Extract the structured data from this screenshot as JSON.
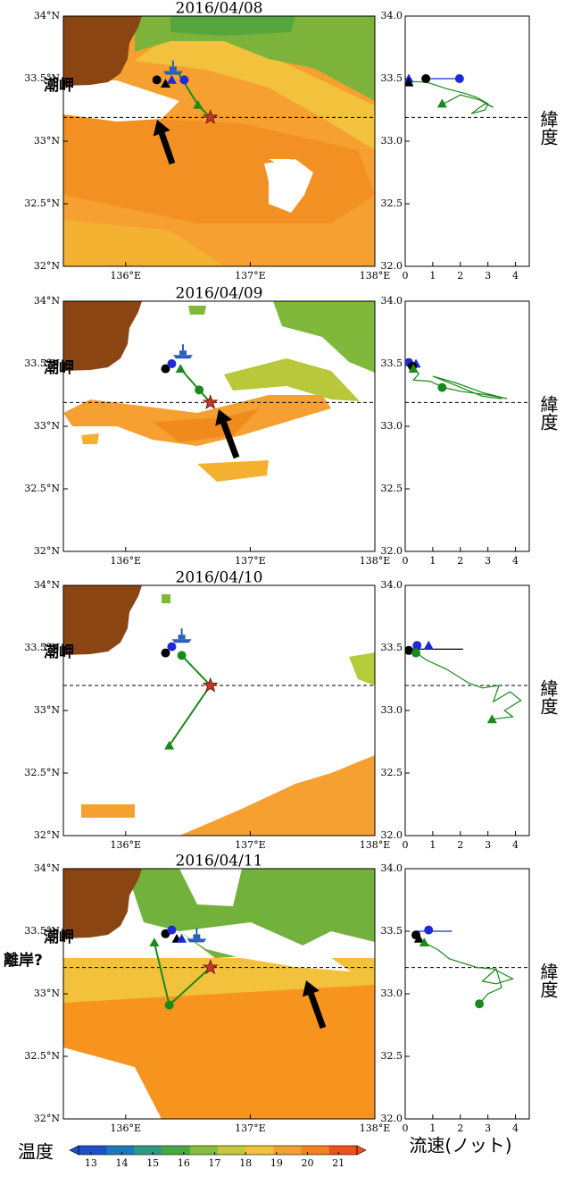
{
  "panels": [
    {
      "title": "2016/04/08",
      "map": {
        "type": "map",
        "xlim": [
          135.5,
          138
        ],
        "ylim": [
          32,
          34
        ],
        "xticks": [
          {
            "value": 136,
            "label": "136°E"
          },
          {
            "value": 137,
            "label": "137°E"
          },
          {
            "value": 138,
            "label": "138°E"
          }
        ],
        "yticks": [
          {
            "value": 32,
            "label": "32°N"
          },
          {
            "value": 32.5,
            "label": "32.5°N"
          },
          {
            "value": 33,
            "label": "33°N"
          },
          {
            "value": 33.5,
            "label": "33.5°N"
          },
          {
            "value": 34,
            "label": "34°N"
          }
        ],
        "annotations": [
          "潮岬"
        ],
        "reference_lat": 33.19,
        "target": {
          "x": 136.68,
          "y": 33.19
        },
        "ship": {
          "x": 136.38,
          "y": 33.56
        },
        "track": {
          "color": "#1a8a1a",
          "x": [
            136.42,
            136.58,
            136.68
          ],
          "y": [
            33.55,
            33.29,
            33.19
          ]
        },
        "markers": [
          {
            "marker": "circle",
            "color": "#000000",
            "x": 136.25,
            "y": 33.49
          },
          {
            "marker": "triangle",
            "color": "#000000",
            "x": 136.32,
            "y": 33.46
          },
          {
            "marker": "triangle",
            "color": "#1f2ad6",
            "x": 136.37,
            "y": 33.49
          },
          {
            "marker": "circle",
            "color": "#1f2ad6",
            "x": 136.47,
            "y": 33.49
          },
          {
            "marker": "triangle",
            "color": "#1a8a1a",
            "x": 136.58,
            "y": 33.29
          }
        ]
      },
      "profile": {
        "type": "line",
        "xlim": [
          0,
          4.5
        ],
        "xticks": [
          0,
          1,
          2,
          3,
          4
        ],
        "ylim": [
          32,
          34
        ],
        "yticks": [
          {
            "value": 32,
            "label": "32.0"
          },
          {
            "value": 32.5,
            "label": "32.5"
          },
          {
            "value": 33,
            "label": "33.0"
          },
          {
            "value": 33.5,
            "label": "33.5"
          },
          {
            "value": 34,
            "label": "34.0"
          }
        ],
        "ylabel": "緯度",
        "reference_lat": 33.19,
        "series": [
          {
            "color": "#1a8a1a",
            "x": [
              0.1,
              0.8,
              1.5,
              2.2,
              2.6,
              3.0,
              2.9,
              2.4,
              2.9,
              3.2,
              2.7,
              2.0,
              1.4
            ],
            "y": [
              33.48,
              33.47,
              33.42,
              33.38,
              33.35,
              33.3,
              33.25,
              33.22,
              33.3,
              33.27,
              33.33,
              33.37,
              33.3
            ]
          },
          {
            "color": "#1f2ad6",
            "x": [
              0.75,
              1.97
            ],
            "y": [
              33.5,
              33.5
            ]
          }
        ],
        "markers": [
          {
            "marker": "triangle",
            "color": "#1f2ad6",
            "x": 0.13,
            "y": 33.5
          },
          {
            "marker": "triangle",
            "color": "#000000",
            "x": 0.13,
            "y": 33.47
          },
          {
            "marker": "circle",
            "color": "#000000",
            "x": 0.75,
            "y": 33.5
          },
          {
            "marker": "circle",
            "color": "#1f2ad6",
            "x": 1.97,
            "y": 33.5
          },
          {
            "marker": "triangle",
            "color": "#1a8a1a",
            "x": 1.34,
            "y": 33.3
          }
        ]
      }
    },
    {
      "title": "2016/04/09",
      "map": {
        "type": "map",
        "xlim": [
          135.5,
          138
        ],
        "ylim": [
          32,
          34
        ],
        "xticks": [
          {
            "value": 136,
            "label": "136°E"
          },
          {
            "value": 137,
            "label": "137°E"
          },
          {
            "value": 138,
            "label": "138°E"
          }
        ],
        "yticks": [
          {
            "value": 32,
            "label": "32°N"
          },
          {
            "value": 32.5,
            "label": "32.5°N"
          },
          {
            "value": 33,
            "label": "33°N"
          },
          {
            "value": 33.5,
            "label": "33.5°N"
          },
          {
            "value": 34,
            "label": "34°N"
          }
        ],
        "annotations": [
          "潮岬"
        ],
        "reference_lat": 33.19,
        "target": {
          "x": 136.68,
          "y": 33.19
        },
        "ship": {
          "x": 136.46,
          "y": 33.57
        },
        "track": {
          "color": "#1a8a1a",
          "x": [
            136.44,
            136.59,
            136.68
          ],
          "y": [
            33.46,
            33.29,
            33.19
          ]
        },
        "markers": [
          {
            "marker": "circle",
            "color": "#000000",
            "x": 136.32,
            "y": 33.46
          },
          {
            "marker": "circle",
            "color": "#1f2ad6",
            "x": 136.37,
            "y": 33.5
          },
          {
            "marker": "triangle",
            "color": "#1a8a1a",
            "x": 136.44,
            "y": 33.46
          },
          {
            "marker": "circle",
            "color": "#1a8a1a",
            "x": 136.59,
            "y": 33.29
          }
        ]
      },
      "profile": {
        "type": "line",
        "xlim": [
          0,
          4.5
        ],
        "xticks": [
          0,
          1,
          2,
          3,
          4
        ],
        "ylim": [
          32,
          34
        ],
        "yticks": [
          {
            "value": 32,
            "label": "32.0"
          },
          {
            "value": 32.5,
            "label": "32.5"
          },
          {
            "value": 33,
            "label": "33.0"
          },
          {
            "value": 33.5,
            "label": "33.5"
          },
          {
            "value": 34,
            "label": "34.0"
          }
        ],
        "ylabel": "緯度",
        "reference_lat": 33.19,
        "series": [
          {
            "color": "#1a8a1a",
            "x": [
              0.2,
              0.5,
              0.3,
              0.9,
              1.4,
              2.0,
              3.0,
              3.7,
              2.8,
              1.8,
              1.0,
              1.8,
              2.8,
              3.5
            ],
            "y": [
              33.48,
              33.42,
              33.37,
              33.36,
              33.31,
              33.28,
              33.25,
              33.22,
              33.27,
              33.35,
              33.4,
              33.33,
              33.24,
              33.22
            ]
          }
        ],
        "markers": [
          {
            "marker": "circle",
            "color": "#1f2ad6",
            "x": 0.13,
            "y": 33.51
          },
          {
            "marker": "triangle",
            "color": "#1f2ad6",
            "x": 0.39,
            "y": 33.5
          },
          {
            "marker": "circle",
            "color": "#000000",
            "x": 0.26,
            "y": 33.48
          },
          {
            "marker": "triangle",
            "color": "#1a8a1a",
            "x": 0.3,
            "y": 33.46
          },
          {
            "marker": "circle",
            "color": "#1a8a1a",
            "x": 1.34,
            "y": 33.31
          }
        ]
      }
    },
    {
      "title": "2016/04/10",
      "map": {
        "type": "map",
        "xlim": [
          135.5,
          138
        ],
        "ylim": [
          32,
          34
        ],
        "xticks": [
          {
            "value": 136,
            "label": "136°E"
          },
          {
            "value": 137,
            "label": "137°E"
          },
          {
            "value": 138,
            "label": "138°E"
          }
        ],
        "yticks": [
          {
            "value": 32,
            "label": "32°N"
          },
          {
            "value": 32.5,
            "label": "32.5°N"
          },
          {
            "value": 33,
            "label": "33°N"
          },
          {
            "value": 33.5,
            "label": "33.5°N"
          },
          {
            "value": 34,
            "label": "34°N"
          }
        ],
        "annotations": [
          "潮岬"
        ],
        "reference_lat": 33.2,
        "target": {
          "x": 136.68,
          "y": 33.2
        },
        "ship": {
          "x": 136.45,
          "y": 33.57
        },
        "track": {
          "color": "#1a8a1a",
          "x": [
            136.45,
            136.68,
            136.35
          ],
          "y": [
            33.44,
            33.2,
            32.72
          ]
        },
        "markers": [
          {
            "marker": "circle",
            "color": "#000000",
            "x": 136.32,
            "y": 33.46
          },
          {
            "marker": "circle",
            "color": "#1f2ad6",
            "x": 136.37,
            "y": 33.51
          },
          {
            "marker": "circle",
            "color": "#1a8a1a",
            "x": 136.45,
            "y": 33.44
          },
          {
            "marker": "triangle",
            "color": "#1a8a1a",
            "x": 136.35,
            "y": 32.72
          }
        ]
      },
      "profile": {
        "type": "line",
        "xlim": [
          0,
          4.5
        ],
        "xticks": [
          0,
          1,
          2,
          3,
          4
        ],
        "ylim": [
          32,
          34
        ],
        "yticks": [
          {
            "value": 32,
            "label": "32.0"
          },
          {
            "value": 32.5,
            "label": "32.5"
          },
          {
            "value": 33,
            "label": "33.0"
          },
          {
            "value": 33.5,
            "label": "33.5"
          },
          {
            "value": 34,
            "label": "34.0"
          }
        ],
        "ylabel": "緯度",
        "reference_lat": 33.2,
        "series": [
          {
            "color": "#1a8a1a",
            "x": [
              0.4,
              0.8,
              1.5,
              2.3,
              2.8,
              3.4,
              3.2,
              3.8,
              4.2,
              3.6,
              3.9,
              3.15
            ],
            "y": [
              33.46,
              33.4,
              33.33,
              33.22,
              33.18,
              33.2,
              33.07,
              33.15,
              33.08,
              33.0,
              32.95,
              32.93
            ]
          },
          {
            "color": "#000000",
            "x": [
              0.13,
              2.1
            ],
            "y": [
              33.49,
              33.49
            ]
          }
        ],
        "markers": [
          {
            "marker": "circle",
            "color": "#000000",
            "x": 0.13,
            "y": 33.48
          },
          {
            "marker": "circle",
            "color": "#1f2ad6",
            "x": 0.43,
            "y": 33.52
          },
          {
            "marker": "triangle",
            "color": "#1f2ad6",
            "x": 0.85,
            "y": 33.52
          },
          {
            "marker": "circle",
            "color": "#1a8a1a",
            "x": 0.39,
            "y": 33.46
          },
          {
            "marker": "triangle",
            "color": "#1a8a1a",
            "x": 3.15,
            "y": 32.93
          }
        ]
      }
    },
    {
      "title": "2016/04/11",
      "map": {
        "type": "map",
        "xlim": [
          135.5,
          138
        ],
        "ylim": [
          32,
          34
        ],
        "xticks": [
          {
            "value": 136,
            "label": "136°E"
          },
          {
            "value": 137,
            "label": "137°E"
          },
          {
            "value": 138,
            "label": "138°E"
          }
        ],
        "yticks": [
          {
            "value": 32,
            "label": "32°N"
          },
          {
            "value": 32.5,
            "label": "32.5°N"
          },
          {
            "value": 33,
            "label": "33°N"
          },
          {
            "value": 33.5,
            "label": "33.5°N"
          },
          {
            "value": 34,
            "label": "34°N"
          }
        ],
        "annotations": [
          "潮岬",
          "離岸?"
        ],
        "reference_lat": 33.21,
        "target": {
          "x": 136.68,
          "y": 33.21
        },
        "ship": {
          "x": 136.57,
          "y": 33.44
        },
        "track": {
          "color": "#1a8a1a",
          "x": [
            136.23,
            136.35,
            136.68
          ],
          "y": [
            33.41,
            32.91,
            33.21
          ]
        },
        "markers": [
          {
            "marker": "circle",
            "color": "#000000",
            "x": 136.32,
            "y": 33.48
          },
          {
            "marker": "circle",
            "color": "#1f2ad6",
            "x": 136.37,
            "y": 33.51
          },
          {
            "marker": "triangle",
            "color": "#000000",
            "x": 136.41,
            "y": 33.44
          },
          {
            "marker": "triangle",
            "color": "#1f2ad6",
            "x": 136.45,
            "y": 33.44
          },
          {
            "marker": "triangle",
            "color": "#1a8a1a",
            "x": 136.23,
            "y": 33.41
          },
          {
            "marker": "circle",
            "color": "#1a8a1a",
            "x": 136.35,
            "y": 32.91
          }
        ]
      },
      "profile": {
        "type": "line",
        "xlim": [
          0,
          4.5
        ],
        "xticks": [
          0,
          1,
          2,
          3,
          4
        ],
        "ylim": [
          32,
          34
        ],
        "yticks": [
          {
            "value": 32,
            "label": "32.0"
          },
          {
            "value": 32.5,
            "label": "32.5"
          },
          {
            "value": 33,
            "label": "33.0"
          },
          {
            "value": 33.5,
            "label": "33.5"
          },
          {
            "value": 34,
            "label": "34.0"
          }
        ],
        "ylabel": "緯度",
        "reference_lat": 33.21,
        "series": [
          {
            "color": "#1a8a1a",
            "x": [
              0.69,
              1.2,
              1.6,
              2.6,
              3.2,
              3.9,
              3.3,
              2.8,
              3.3,
              3.5,
              3.0,
              2.69
            ],
            "y": [
              33.41,
              33.35,
              33.28,
              33.21,
              33.2,
              33.12,
              33.08,
              33.1,
              33.2,
              33.05,
              33.0,
              32.92
            ]
          },
          {
            "color": "#1f2ad6",
            "x": [
              0.4,
              1.7
            ],
            "y": [
              33.5,
              33.5
            ]
          }
        ],
        "markers": [
          {
            "marker": "circle",
            "color": "#000000",
            "x": 0.39,
            "y": 33.47
          },
          {
            "marker": "circle",
            "color": "#1f2ad6",
            "x": 0.85,
            "y": 33.51
          },
          {
            "marker": "triangle",
            "color": "#000000",
            "x": 0.5,
            "y": 33.44
          },
          {
            "marker": "triangle",
            "color": "#1a8a1a",
            "x": 0.69,
            "y": 33.41
          },
          {
            "marker": "circle",
            "color": "#1a8a1a",
            "x": 2.69,
            "y": 32.92
          }
        ]
      }
    }
  ],
  "colorbar": {
    "label": "温度",
    "range": [
      12.6,
      21.6
    ],
    "ticks": [
      13,
      14,
      15,
      16,
      17,
      18,
      19,
      20,
      21
    ],
    "colors": [
      "#1f4fc8",
      "#1c78bd",
      "#2f9a84",
      "#45a840",
      "#86bd3a",
      "#c6c83a",
      "#f2c23a",
      "#f5a02c",
      "#f5801e",
      "#ee5018"
    ]
  },
  "xlabel": "流速(ノット)"
}
